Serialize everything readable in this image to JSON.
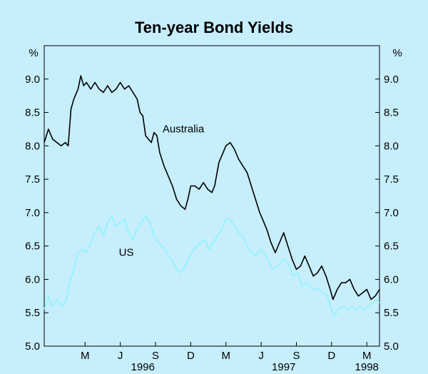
{
  "chart_data": {
    "type": "line",
    "title": "Ten-year Bond Yields",
    "y_unit_left": "%",
    "y_unit_right": "%",
    "ylim": [
      5.0,
      9.5
    ],
    "yticks": [
      5.0,
      5.5,
      6.0,
      6.5,
      7.0,
      7.5,
      8.0,
      8.5,
      9.0
    ],
    "ytick_labels": [
      "5.0",
      "5.5",
      "6.0",
      "6.5",
      "7.0",
      "7.5",
      "8.0",
      "8.5",
      "9.0"
    ],
    "x_range": [
      1995.92,
      1998.3
    ],
    "month_ticks": [
      {
        "label": "M",
        "x": 1996.21
      },
      {
        "label": "J",
        "x": 1996.46
      },
      {
        "label": "S",
        "x": 1996.71
      },
      {
        "label": "D",
        "x": 1996.96
      },
      {
        "label": "M",
        "x": 1997.21
      },
      {
        "label": "J",
        "x": 1997.46
      },
      {
        "label": "S",
        "x": 1997.71
      },
      {
        "label": "D",
        "x": 1997.96
      },
      {
        "label": "M",
        "x": 1998.21
      }
    ],
    "year_labels": [
      {
        "label": "1996",
        "x": 1996.62
      },
      {
        "label": "1997",
        "x": 1997.62
      },
      {
        "label": "1998",
        "x": 1998.21
      }
    ],
    "grid": false,
    "series": [
      {
        "name": "Australia",
        "color": "#000000",
        "label_at": [
          1996.76,
          8.2
        ],
        "points": [
          [
            1995.92,
            8.05
          ],
          [
            1995.95,
            8.25
          ],
          [
            1995.98,
            8.1
          ],
          [
            1996.01,
            8.05
          ],
          [
            1996.04,
            8.0
          ],
          [
            1996.07,
            8.05
          ],
          [
            1996.09,
            8.0
          ],
          [
            1996.11,
            8.55
          ],
          [
            1996.13,
            8.7
          ],
          [
            1996.16,
            8.85
          ],
          [
            1996.18,
            9.05
          ],
          [
            1996.2,
            8.9
          ],
          [
            1996.22,
            8.95
          ],
          [
            1996.25,
            8.85
          ],
          [
            1996.28,
            8.95
          ],
          [
            1996.31,
            8.85
          ],
          [
            1996.34,
            8.8
          ],
          [
            1996.37,
            8.9
          ],
          [
            1996.4,
            8.8
          ],
          [
            1996.43,
            8.85
          ],
          [
            1996.46,
            8.95
          ],
          [
            1996.49,
            8.85
          ],
          [
            1996.52,
            8.9
          ],
          [
            1996.55,
            8.8
          ],
          [
            1996.58,
            8.7
          ],
          [
            1996.6,
            8.5
          ],
          [
            1996.62,
            8.45
          ],
          [
            1996.64,
            8.15
          ],
          [
            1996.66,
            8.1
          ],
          [
            1996.68,
            8.05
          ],
          [
            1996.7,
            8.2
          ],
          [
            1996.72,
            8.15
          ],
          [
            1996.74,
            7.9
          ],
          [
            1996.77,
            7.7
          ],
          [
            1996.8,
            7.55
          ],
          [
            1996.83,
            7.4
          ],
          [
            1996.86,
            7.2
          ],
          [
            1996.89,
            7.1
          ],
          [
            1996.92,
            7.05
          ],
          [
            1996.94,
            7.2
          ],
          [
            1996.96,
            7.4
          ],
          [
            1996.99,
            7.4
          ],
          [
            1997.02,
            7.35
          ],
          [
            1997.05,
            7.45
          ],
          [
            1997.08,
            7.35
          ],
          [
            1997.11,
            7.3
          ],
          [
            1997.13,
            7.4
          ],
          [
            1997.16,
            7.75
          ],
          [
            1997.19,
            7.9
          ],
          [
            1997.21,
            8.0
          ],
          [
            1997.24,
            8.05
          ],
          [
            1997.27,
            7.95
          ],
          [
            1997.3,
            7.8
          ],
          [
            1997.33,
            7.7
          ],
          [
            1997.36,
            7.6
          ],
          [
            1997.39,
            7.4
          ],
          [
            1997.42,
            7.2
          ],
          [
            1997.45,
            7.0
          ],
          [
            1997.47,
            6.9
          ],
          [
            1997.5,
            6.75
          ],
          [
            1997.53,
            6.55
          ],
          [
            1997.56,
            6.4
          ],
          [
            1997.59,
            6.55
          ],
          [
            1997.62,
            6.7
          ],
          [
            1997.65,
            6.5
          ],
          [
            1997.68,
            6.3
          ],
          [
            1997.71,
            6.15
          ],
          [
            1997.74,
            6.2
          ],
          [
            1997.77,
            6.35
          ],
          [
            1997.8,
            6.2
          ],
          [
            1997.83,
            6.05
          ],
          [
            1997.86,
            6.1
          ],
          [
            1997.89,
            6.2
          ],
          [
            1997.92,
            6.05
          ],
          [
            1997.95,
            5.85
          ],
          [
            1997.97,
            5.7
          ],
          [
            1998.0,
            5.85
          ],
          [
            1998.03,
            5.95
          ],
          [
            1998.06,
            5.95
          ],
          [
            1998.09,
            6.0
          ],
          [
            1998.12,
            5.85
          ],
          [
            1998.15,
            5.75
          ],
          [
            1998.18,
            5.8
          ],
          [
            1998.21,
            5.85
          ],
          [
            1998.24,
            5.7
          ],
          [
            1998.27,
            5.75
          ],
          [
            1998.3,
            5.85
          ]
        ]
      },
      {
        "name": "US",
        "color": "#8ff3ff",
        "label_at": [
          1996.45,
          6.35
        ],
        "points": [
          [
            1995.92,
            5.55
          ],
          [
            1995.95,
            5.75
          ],
          [
            1995.98,
            5.6
          ],
          [
            1996.01,
            5.7
          ],
          [
            1996.04,
            5.6
          ],
          [
            1996.07,
            5.65
          ],
          [
            1996.1,
            5.95
          ],
          [
            1996.13,
            6.15
          ],
          [
            1996.16,
            6.4
          ],
          [
            1996.19,
            6.45
          ],
          [
            1996.22,
            6.4
          ],
          [
            1996.25,
            6.55
          ],
          [
            1996.28,
            6.7
          ],
          [
            1996.31,
            6.8
          ],
          [
            1996.34,
            6.65
          ],
          [
            1996.37,
            6.85
          ],
          [
            1996.4,
            6.95
          ],
          [
            1996.43,
            6.8
          ],
          [
            1996.46,
            6.85
          ],
          [
            1996.49,
            6.9
          ],
          [
            1996.52,
            6.7
          ],
          [
            1996.55,
            6.6
          ],
          [
            1996.58,
            6.75
          ],
          [
            1996.61,
            6.85
          ],
          [
            1996.64,
            6.95
          ],
          [
            1996.67,
            6.85
          ],
          [
            1996.7,
            6.65
          ],
          [
            1996.73,
            6.55
          ],
          [
            1996.76,
            6.5
          ],
          [
            1996.79,
            6.4
          ],
          [
            1996.82,
            6.3
          ],
          [
            1996.85,
            6.2
          ],
          [
            1996.88,
            6.1
          ],
          [
            1996.91,
            6.15
          ],
          [
            1996.94,
            6.3
          ],
          [
            1996.97,
            6.4
          ],
          [
            1997.0,
            6.5
          ],
          [
            1997.03,
            6.55
          ],
          [
            1997.06,
            6.6
          ],
          [
            1997.09,
            6.45
          ],
          [
            1997.12,
            6.55
          ],
          [
            1997.15,
            6.65
          ],
          [
            1997.18,
            6.75
          ],
          [
            1997.21,
            6.9
          ],
          [
            1997.24,
            6.9
          ],
          [
            1997.27,
            6.8
          ],
          [
            1997.3,
            6.7
          ],
          [
            1997.33,
            6.65
          ],
          [
            1997.36,
            6.5
          ],
          [
            1997.39,
            6.4
          ],
          [
            1997.42,
            6.35
          ],
          [
            1997.45,
            6.45
          ],
          [
            1997.48,
            6.4
          ],
          [
            1997.51,
            6.3
          ],
          [
            1997.54,
            6.15
          ],
          [
            1997.57,
            6.2
          ],
          [
            1997.6,
            6.25
          ],
          [
            1997.63,
            6.3
          ],
          [
            1997.66,
            6.2
          ],
          [
            1997.69,
            6.05
          ],
          [
            1997.72,
            6.1
          ],
          [
            1997.75,
            5.9
          ],
          [
            1997.78,
            5.95
          ],
          [
            1997.81,
            5.9
          ],
          [
            1997.84,
            5.85
          ],
          [
            1997.87,
            5.85
          ],
          [
            1997.9,
            5.8
          ],
          [
            1997.93,
            5.75
          ],
          [
            1997.96,
            5.55
          ],
          [
            1997.98,
            5.45
          ],
          [
            1998.01,
            5.55
          ],
          [
            1998.04,
            5.6
          ],
          [
            1998.07,
            5.55
          ],
          [
            1998.1,
            5.6
          ],
          [
            1998.13,
            5.55
          ],
          [
            1998.16,
            5.6
          ],
          [
            1998.19,
            5.55
          ],
          [
            1998.22,
            5.6
          ],
          [
            1998.25,
            5.65
          ],
          [
            1998.28,
            5.7
          ],
          [
            1998.3,
            5.65
          ]
        ]
      }
    ]
  }
}
